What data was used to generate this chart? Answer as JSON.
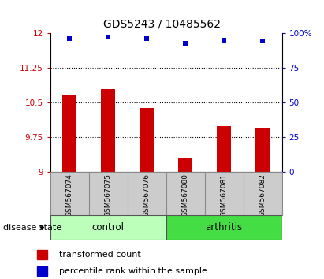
{
  "title": "GDS5243 / 10485562",
  "samples": [
    "GSM567074",
    "GSM567075",
    "GSM567076",
    "GSM567080",
    "GSM567081",
    "GSM567082"
  ],
  "bar_values": [
    10.65,
    10.8,
    10.38,
    9.28,
    9.98,
    9.93
  ],
  "dot_values": [
    96.5,
    97.5,
    96.0,
    93.0,
    95.0,
    94.5
  ],
  "bar_color": "#cc0000",
  "dot_color": "#0000cc",
  "ylim_left": [
    9.0,
    12.0
  ],
  "ylim_right": [
    0,
    100
  ],
  "yticks_left": [
    9.0,
    9.75,
    10.5,
    11.25,
    12.0
  ],
  "ytick_labels_left": [
    "9",
    "9.75",
    "10.5",
    "11.25",
    "12"
  ],
  "yticks_right": [
    0,
    25,
    50,
    75,
    100
  ],
  "ytick_labels_right": [
    "0",
    "25",
    "50",
    "75",
    "100%"
  ],
  "hlines": [
    9.75,
    10.5,
    11.25
  ],
  "groups": [
    {
      "label": "control",
      "indices": [
        0,
        1,
        2
      ],
      "color": "#bbffbb"
    },
    {
      "label": "arthritis",
      "indices": [
        3,
        4,
        5
      ],
      "color": "#44dd44"
    }
  ],
  "disease_state_label": "disease state",
  "legend_bar_label": "transformed count",
  "legend_dot_label": "percentile rank within the sample",
  "tick_area_color": "#cccccc",
  "title_fontsize": 10,
  "axis_fontsize": 7.5,
  "label_fontsize": 6.5,
  "group_fontsize": 8.5,
  "legend_fontsize": 8
}
